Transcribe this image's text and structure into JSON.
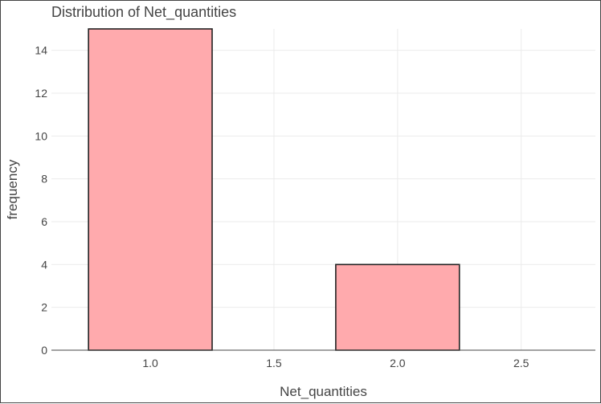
{
  "chart_data": {
    "type": "bar",
    "title": "Distribution of Net_quantities",
    "xlabel": "Net_quantities",
    "ylabel": "frequency",
    "bins": [
      {
        "x0": 0.75,
        "x1": 1.25,
        "count": 15
      },
      {
        "x0": 1.25,
        "x1": 1.75,
        "count": 0
      },
      {
        "x0": 1.75,
        "x1": 2.25,
        "count": 4
      },
      {
        "x0": 2.25,
        "x1": 2.75,
        "count": 0
      }
    ],
    "xlim": [
      0.6,
      2.8
    ],
    "ylim": [
      0,
      15.0
    ],
    "xticks": [
      1.0,
      1.5,
      2.0,
      2.5
    ],
    "xtick_labels": [
      "1.0",
      "1.5",
      "2.0",
      "2.5"
    ],
    "yticks": [
      0,
      2,
      4,
      6,
      8,
      10,
      12,
      14
    ],
    "ytick_labels": [
      "0",
      "2",
      "4",
      "6",
      "8",
      "10",
      "12",
      "14"
    ],
    "grid": true,
    "colors": {
      "bar_fill": "#ffaaad",
      "bar_stroke": "#222222",
      "grid": "#ebebeb",
      "text": "#444444",
      "axis": "#444444"
    }
  }
}
